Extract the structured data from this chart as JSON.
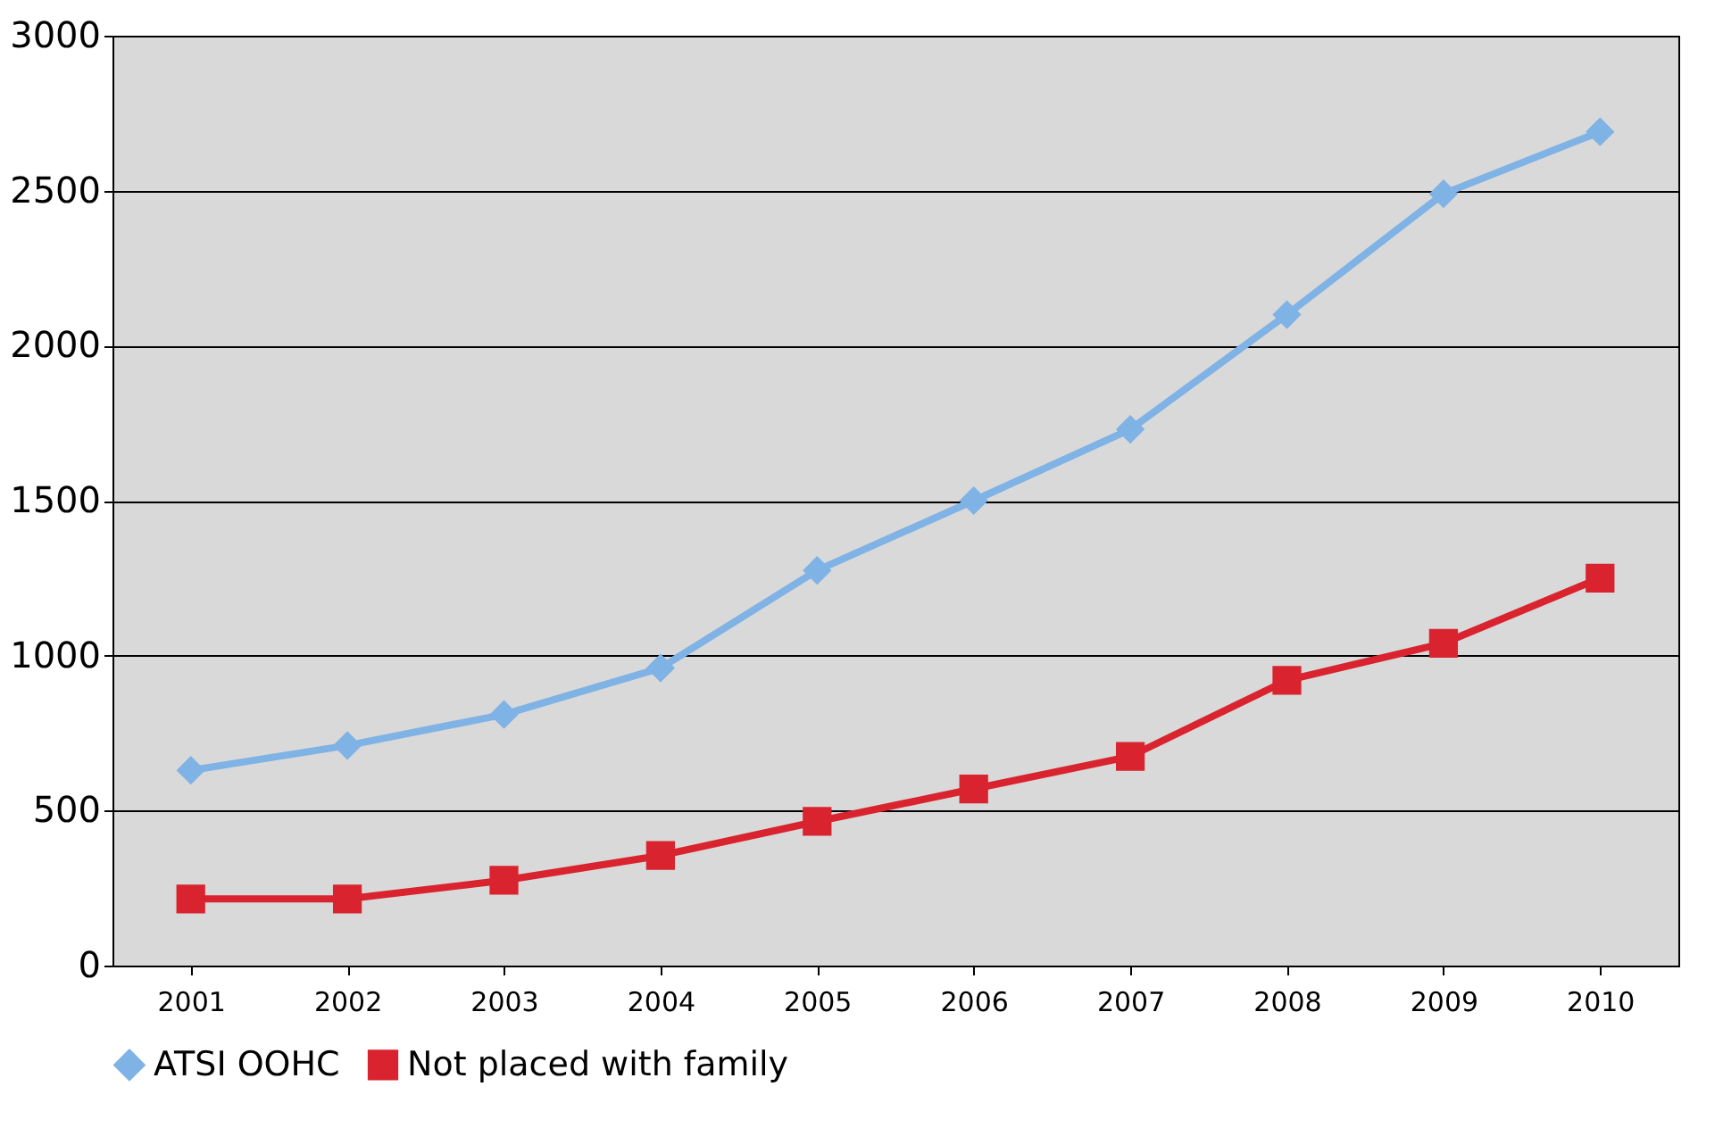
{
  "chart_data": {
    "type": "line",
    "categories": [
      "2001",
      "2002",
      "2003",
      "2004",
      "2005",
      "2006",
      "2007",
      "2008",
      "2009",
      "2010"
    ],
    "series": [
      {
        "name": "ATSI OOHC",
        "color": "#7fb2e5",
        "marker": "diamond",
        "values": [
          630,
          710,
          810,
          960,
          1275,
          1500,
          1730,
          2100,
          2490,
          2690
        ]
      },
      {
        "name": "Not placed with family",
        "color": "#d9232e",
        "marker": "square",
        "values": [
          215,
          215,
          275,
          355,
          465,
          570,
          675,
          920,
          1040,
          1250
        ]
      }
    ],
    "ylim": [
      0,
      3000
    ],
    "yticks": [
      0,
      500,
      1000,
      1500,
      2000,
      2500,
      3000
    ],
    "grid": "y",
    "legend": "bottom",
    "line_style": "solid"
  }
}
